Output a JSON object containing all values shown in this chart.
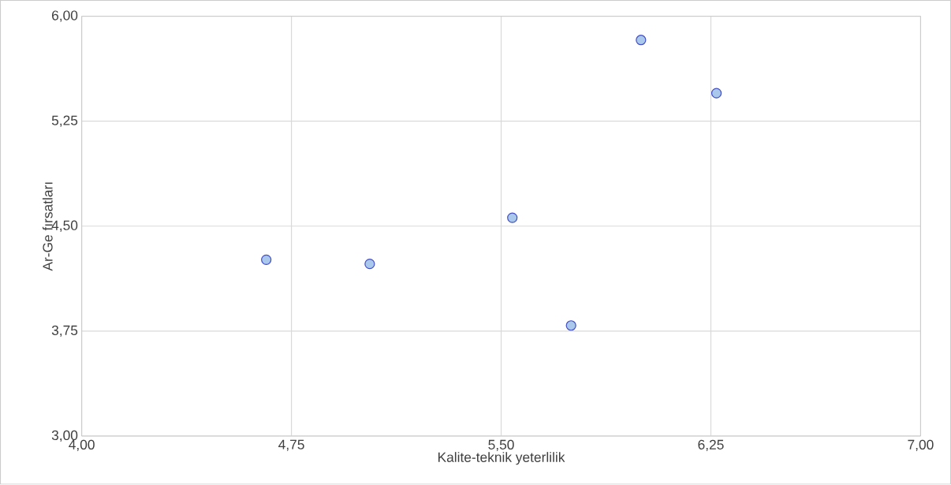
{
  "chart_data": {
    "type": "scatter",
    "xlabel": "Kalite-teknik yeterlilik",
    "ylabel": "Ar-Ge fırsatları",
    "x": [
      4.66,
      5.03,
      5.54,
      5.75,
      6.0,
      6.27
    ],
    "series": [
      {
        "color": "#a9c8ec",
        "values": [
          4.26,
          4.23,
          4.56,
          3.79,
          5.83,
          5.45
        ]
      }
    ],
    "xlim": [
      4,
      7
    ],
    "ylim": [
      3,
      6
    ],
    "xticks": [
      {
        "value": 4,
        "label": "4,00"
      },
      {
        "value": 4.75,
        "label": "4,75"
      },
      {
        "value": 5.5,
        "label": "5,50"
      },
      {
        "value": 6.25,
        "label": "6,25"
      },
      {
        "value": 7,
        "label": "7,00"
      }
    ],
    "yticks": [
      {
        "value": 3,
        "label": "3,00"
      },
      {
        "value": 3.75,
        "label": "3,75"
      },
      {
        "value": 4.5,
        "label": "4,50"
      },
      {
        "value": 5.25,
        "label": "5,25"
      },
      {
        "value": 6,
        "label": "6,00"
      }
    ],
    "grid": true,
    "marker": "circle"
  }
}
